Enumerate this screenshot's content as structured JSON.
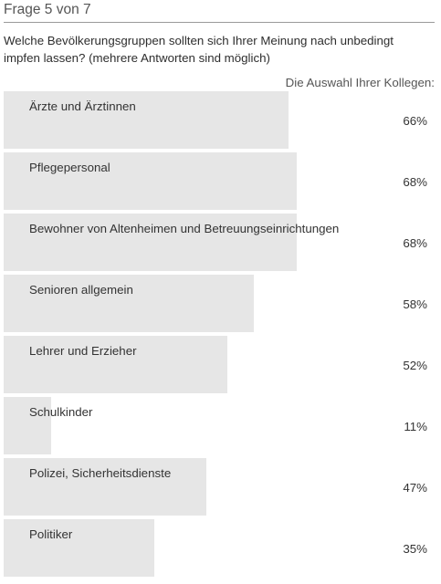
{
  "header": {
    "title": "Frage 5 von 7"
  },
  "question": {
    "text": "Welche Bevölkerungsgruppen sollten sich Ihrer Meinung nach unbedingt impfen lassen? (mehrere Antworten sind möglich)"
  },
  "results": {
    "caption": "Die Auswahl Ihrer Kollegen:",
    "options": [
      {
        "label": "Ärzte und Ärztinnen",
        "percent_text": "66%",
        "share": 0.66
      },
      {
        "label": "Pflegepersonal",
        "percent_text": "68%",
        "share": 0.68
      },
      {
        "label": "Bewohner von Altenheimen und Betreuungseinrichtungen",
        "percent_text": "68%",
        "share": 0.68
      },
      {
        "label": "Senioren allgemein",
        "percent_text": "58%",
        "share": 0.58
      },
      {
        "label": "Lehrer und Erzieher",
        "percent_text": "52%",
        "share": 0.52
      },
      {
        "label": "Schulkinder",
        "percent_text": "11%",
        "share": 0.11
      },
      {
        "label": "Polizei, Sicherheitsdienste",
        "percent_text": "47%",
        "share": 0.47
      },
      {
        "label": "Politiker",
        "percent_text": "35%",
        "share": 0.35
      }
    ]
  },
  "colors": {
    "bar_fill": "#e6e6e6",
    "title_rule": "#9a9a9a"
  }
}
